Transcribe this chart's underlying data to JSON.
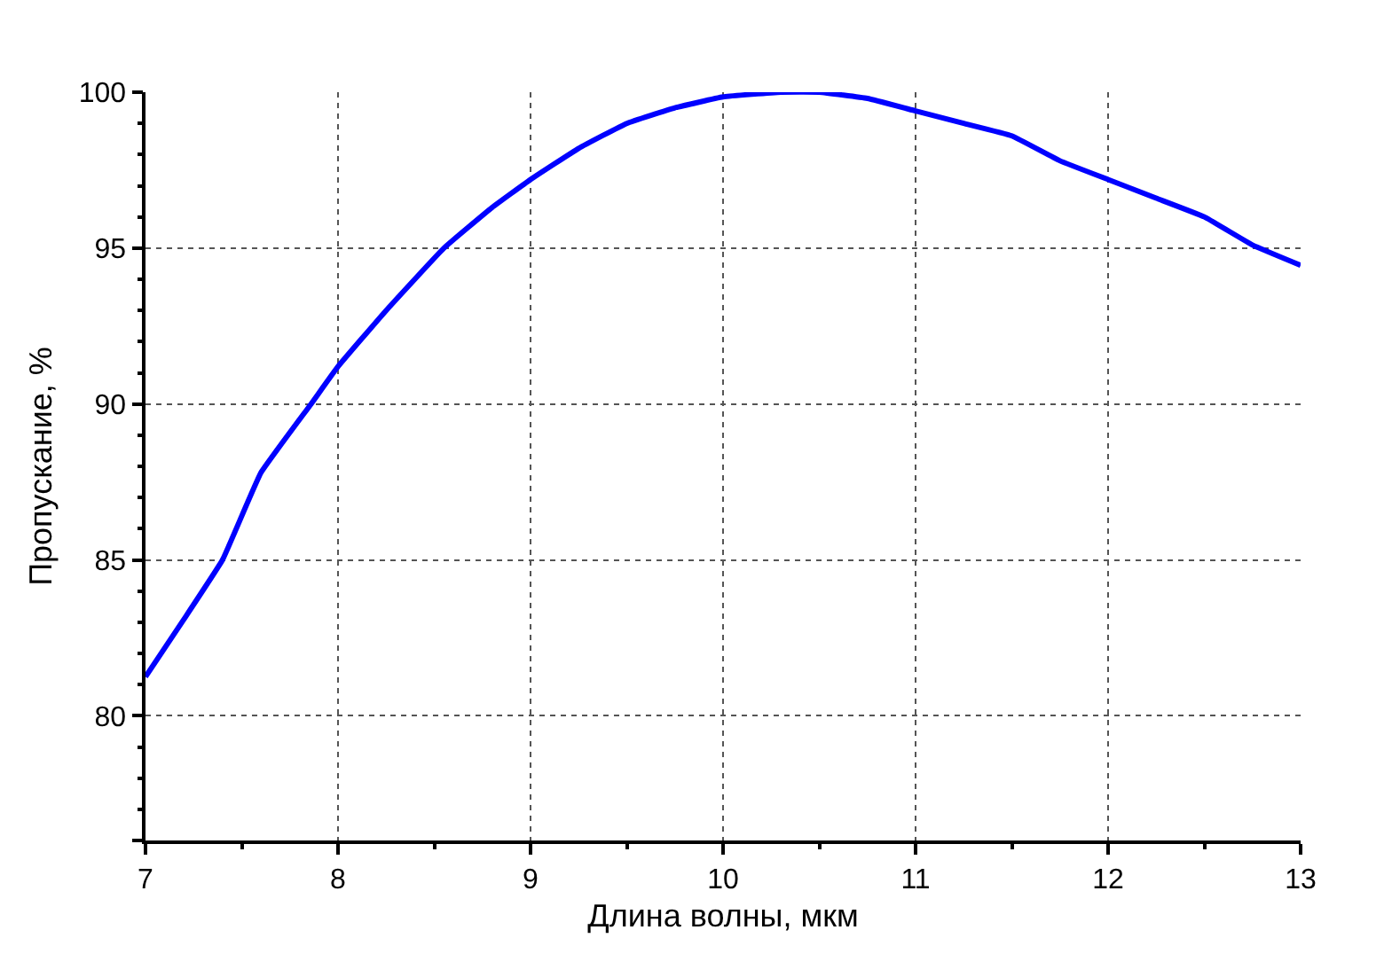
{
  "chart_data": {
    "type": "line",
    "xlabel": "Длина волны, мкм",
    "ylabel": "Пропускание, %",
    "xlim": [
      7,
      13
    ],
    "xticks": [
      7,
      8,
      9,
      10,
      11,
      12,
      13
    ],
    "ylim": [
      76,
      100
    ],
    "yticks": [
      {
        "value": 76,
        "label": null
      },
      80,
      85,
      90,
      95,
      100
    ],
    "grid": true,
    "legend": false,
    "marker": "none",
    "line_style": "solid",
    "series": [
      {
        "color": "#0000ff",
        "x": [
          7,
          7.2,
          7.4,
          7.6,
          7.86,
          8,
          8.25,
          8.55,
          8.8,
          9,
          9.25,
          9.5,
          9.75,
          10,
          10.3,
          10.5,
          10.75,
          11,
          11.25,
          11.5,
          11.75,
          12,
          12.25,
          12.5,
          12.75,
          13
        ],
        "values": [
          81.25,
          83.1,
          85,
          87.8,
          90,
          91.2,
          93,
          95,
          96.3,
          97.2,
          98.2,
          99,
          99.5,
          99.85,
          100,
          100,
          99.8,
          99.4,
          99,
          98.6,
          97.8,
          97.2,
          96.6,
          96,
          95.1,
          94.45
        ]
      }
    ]
  }
}
